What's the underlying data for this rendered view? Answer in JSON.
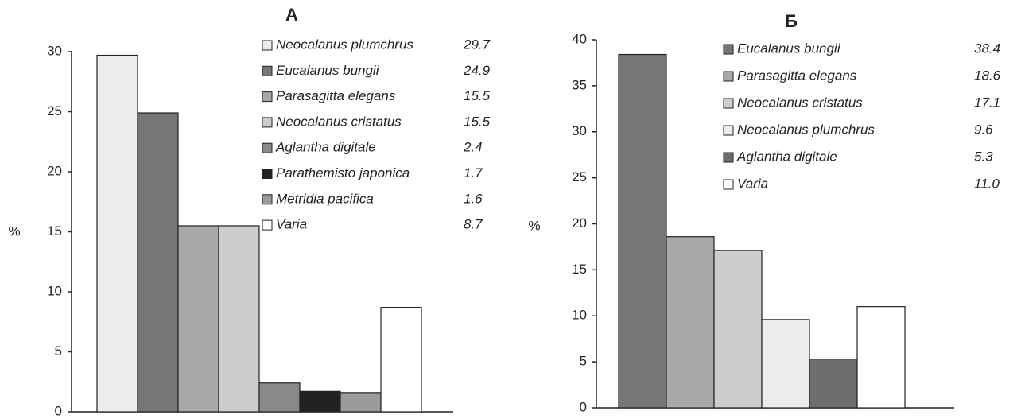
{
  "chart_data": [
    {
      "type": "bar",
      "title": "А",
      "y_label": "%",
      "categories": [
        "Neocalanus plumchrus",
        "Eucalanus bungii",
        "Parasagitta elegans",
        "Neocalanus cristatus",
        "Aglantha digitale",
        "Parathemisto japonica",
        "Metridia pacifica",
        "Varia"
      ],
      "values": [
        29.7,
        24.9,
        15.5,
        15.5,
        2.4,
        1.7,
        1.6,
        8.7
      ],
      "value_labels": [
        "29.7",
        "24.9",
        "15.5",
        "15.5",
        "2.4",
        "1.7",
        "1.6",
        "8.7"
      ],
      "colors": [
        "#ececec",
        "#767676",
        "#a8a8a8",
        "#cdcdcd",
        "#8a8a8a",
        "#222222",
        "#9a9a9a",
        "#ffffff"
      ],
      "ylim": [
        0,
        30
      ],
      "yticks": [
        0,
        5,
        10,
        15,
        20,
        25,
        30
      ]
    },
    {
      "type": "bar",
      "title": "Б",
      "y_label": "%",
      "categories": [
        "Eucalanus bungii",
        "Parasagitta elegans",
        "Neocalanus cristatus",
        "Neocalanus plumchrus",
        "Aglantha digitale",
        "Varia"
      ],
      "values": [
        38.4,
        18.6,
        17.1,
        9.6,
        5.3,
        11.0
      ],
      "value_labels": [
        "38.4",
        "18.6",
        "17.1",
        "9.6",
        "5.3",
        "11.0"
      ],
      "colors": [
        "#767676",
        "#a8a8a8",
        "#cdcdcd",
        "#ececec",
        "#6e6e6e",
        "#ffffff"
      ],
      "ylim": [
        0,
        40
      ],
      "yticks": [
        0,
        5,
        10,
        15,
        20,
        25,
        30,
        35,
        40
      ]
    }
  ]
}
